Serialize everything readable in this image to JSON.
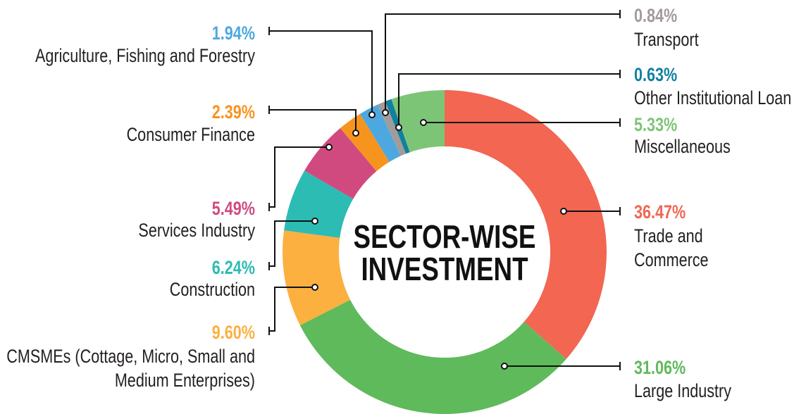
{
  "chart_data": {
    "type": "pie",
    "variant": "donut",
    "title": "SECTOR-WISE INVESTMENT",
    "title_lines": [
      "SECTOR-WISE",
      "INVESTMENT"
    ],
    "start": "top",
    "direction": "clockwise",
    "slices": [
      {
        "key": "trade",
        "label_lines": [
          "Trade and",
          "Commerce"
        ],
        "value": 36.47,
        "value_label": "36.47%",
        "color": "#f26652"
      },
      {
        "key": "large",
        "label_lines": [
          "Large Industry"
        ],
        "value": 31.06,
        "value_label": "31.06%",
        "color": "#5fba5b"
      },
      {
        "key": "cmsme",
        "label_lines": [
          "CMSMEs (Cottage, Micro, Small and",
          "Medium Enterprises)"
        ],
        "value": 9.6,
        "value_label": "9.60%",
        "color": "#fbb040"
      },
      {
        "key": "construction",
        "label_lines": [
          "Construction"
        ],
        "value": 6.24,
        "value_label": "6.24%",
        "color": "#2cbcb3"
      },
      {
        "key": "services",
        "label_lines": [
          "Services Industry"
        ],
        "value": 5.49,
        "value_label": "5.49%",
        "color": "#d04a80"
      },
      {
        "key": "consumer",
        "label_lines": [
          "Consumer Finance"
        ],
        "value": 2.39,
        "value_label": "2.39%",
        "color": "#f7941d"
      },
      {
        "key": "agri",
        "label_lines": [
          "Agriculture, Fishing and Forestry"
        ],
        "value": 1.94,
        "value_label": "1.94%",
        "color": "#4ea8e0"
      },
      {
        "key": "transport",
        "label_lines": [
          "Transport"
        ],
        "value": 0.84,
        "value_label": "0.84%",
        "color": "#a19b99"
      },
      {
        "key": "other",
        "label_lines": [
          "Other Institutional Loan"
        ],
        "value": 0.63,
        "value_label": "0.63%",
        "color": "#117fa0"
      },
      {
        "key": "misc",
        "label_lines": [
          "Miscellaneous"
        ],
        "value": 5.33,
        "value_label": "5.33%",
        "color": "#7dc576"
      }
    ]
  }
}
